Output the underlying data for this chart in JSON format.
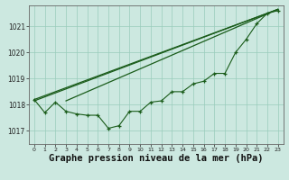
{
  "bg_color": "#cce8e0",
  "grid_color": "#99ccbb",
  "line_color": "#1a5c1a",
  "title": "Graphe pression niveau de la mer (hPa)",
  "title_fontsize": 7.5,
  "xlim": [
    -0.5,
    23.5
  ],
  "ylim": [
    1016.5,
    1021.8
  ],
  "yticks": [
    1017,
    1018,
    1019,
    1020,
    1021
  ],
  "xtick_labels": [
    "0",
    "1",
    "2",
    "3",
    "4",
    "5",
    "6",
    "7",
    "8",
    "9",
    "10",
    "11",
    "12",
    "13",
    "14",
    "15",
    "16",
    "17",
    "18",
    "19",
    "20",
    "21",
    "22",
    "23"
  ],
  "series_main": [
    1018.2,
    1017.7,
    1018.1,
    1017.75,
    1017.65,
    1017.6,
    1017.6,
    1017.1,
    1017.2,
    1017.75,
    1017.75,
    1018.1,
    1018.15,
    1018.5,
    1018.5,
    1018.8,
    1018.9,
    1019.2,
    1019.2,
    1020.0,
    1020.5,
    1021.1,
    1021.5,
    1021.6
  ],
  "line1_x": [
    0,
    23
  ],
  "line1_y": [
    1018.15,
    1021.65
  ],
  "line2_x": [
    0,
    23
  ],
  "line2_y": [
    1018.2,
    1021.65
  ],
  "line3_x": [
    3,
    23
  ],
  "line3_y": [
    1018.15,
    1021.65
  ]
}
